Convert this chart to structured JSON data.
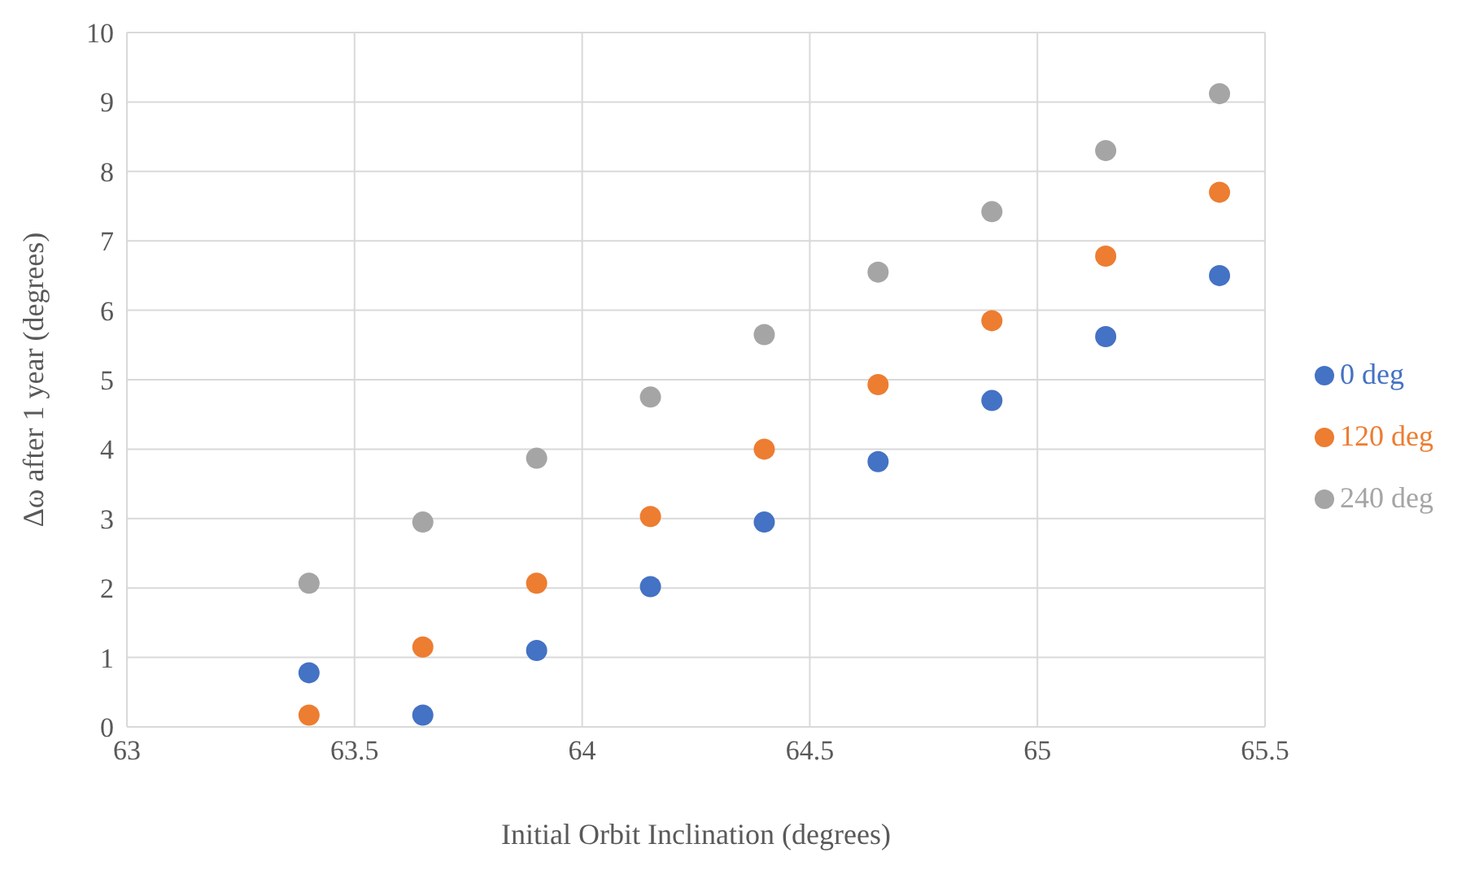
{
  "chart_data": {
    "type": "scatter",
    "xlabel": "Initial Orbit Inclination (degrees)",
    "ylabel": "Δω after 1 year (degrees)",
    "x": [
      63.4,
      63.65,
      63.9,
      64.15,
      64.4,
      64.65,
      64.9,
      65.15,
      65.4
    ],
    "series": [
      {
        "name": "0 deg",
        "color": "#4472c4",
        "values": [
          0.78,
          0.17,
          1.1,
          2.02,
          2.95,
          3.82,
          4.7,
          5.62,
          6.5
        ]
      },
      {
        "name": "120 deg",
        "color": "#ed7d31",
        "values": [
          0.17,
          1.15,
          2.07,
          3.03,
          4.0,
          4.93,
          5.85,
          6.78,
          7.7
        ]
      },
      {
        "name": "240 deg",
        "color": "#a5a5a5",
        "values": [
          2.07,
          2.95,
          3.87,
          4.75,
          5.65,
          6.55,
          7.42,
          8.3,
          9.12
        ]
      }
    ],
    "xlim": [
      63,
      65.5
    ],
    "xticks": [
      63,
      63.5,
      64,
      64.5,
      65,
      65.5
    ],
    "ylim": [
      0,
      10
    ],
    "yticks": [
      0,
      1,
      2,
      3,
      4,
      5,
      6,
      7,
      8,
      9,
      10
    ],
    "grid": true,
    "legend": "right",
    "marker": "circle"
  }
}
